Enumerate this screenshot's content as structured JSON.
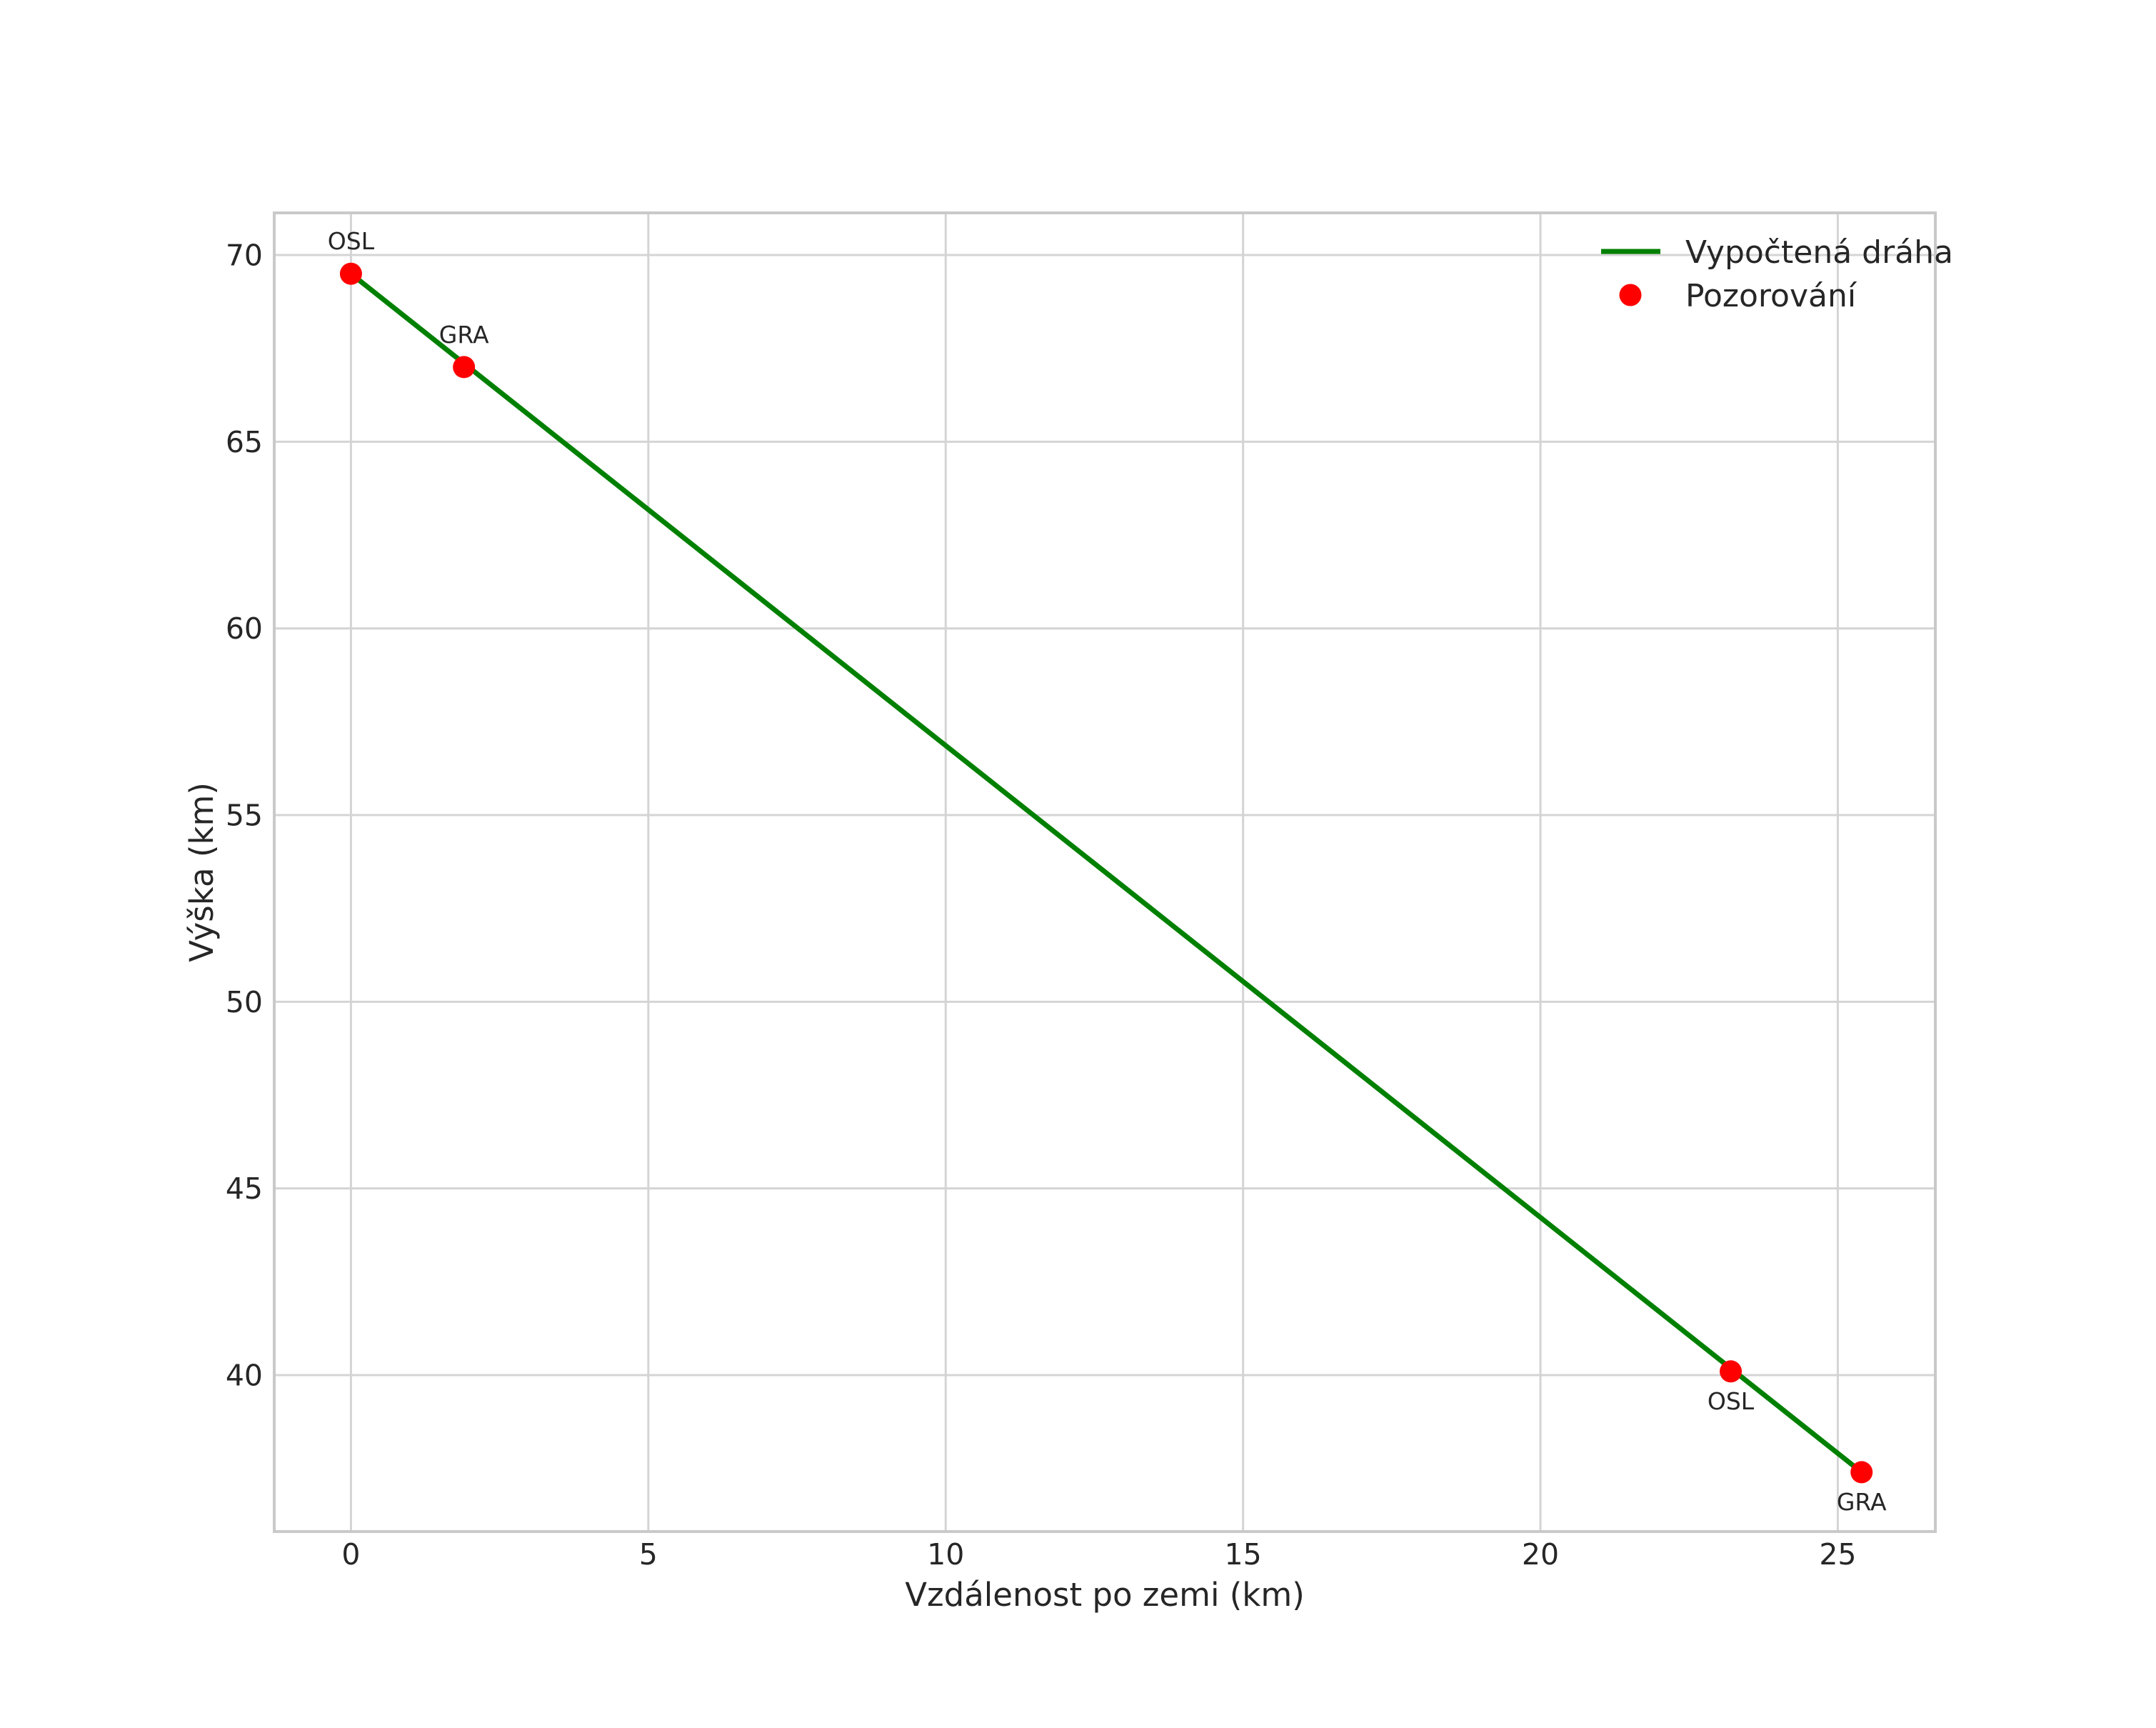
{
  "chart_data": {
    "type": "line",
    "title": "",
    "xlabel": "Vzdálenost po zemi (km)",
    "ylabel": "Výška (km)",
    "xlim": [
      -1.29,
      26.64
    ],
    "ylim": [
      35.81,
      71.13
    ],
    "xticks": [
      0,
      5,
      10,
      15,
      20,
      25
    ],
    "yticks": [
      40,
      45,
      50,
      55,
      60,
      65,
      70
    ],
    "grid": true,
    "legend_position": "upper right",
    "series": [
      {
        "name": "Vypočtená dráha",
        "type": "line",
        "color": "#008000",
        "points": [
          [
            0,
            69.5
          ],
          [
            25.4,
            37.4
          ]
        ]
      },
      {
        "name": "Pozorování",
        "type": "scatter",
        "color": "#ff0000",
        "points": [
          [
            0,
            69.5
          ],
          [
            1.9,
            67.0
          ],
          [
            23.2,
            40.1
          ],
          [
            25.4,
            37.4
          ]
        ]
      }
    ],
    "annotations": [
      {
        "label": "OSL",
        "x": 0,
        "y": 69.5,
        "placement": "above"
      },
      {
        "label": "GRA",
        "x": 1.9,
        "y": 67.0,
        "placement": "above"
      },
      {
        "label": "OSL",
        "x": 23.2,
        "y": 40.1,
        "placement": "below"
      },
      {
        "label": "GRA",
        "x": 25.4,
        "y": 37.4,
        "placement": "below"
      }
    ],
    "colors": {
      "grid": "#d4d4d4",
      "spine": "#c9c9c9",
      "text": "#262626",
      "background": "#ffffff"
    }
  }
}
